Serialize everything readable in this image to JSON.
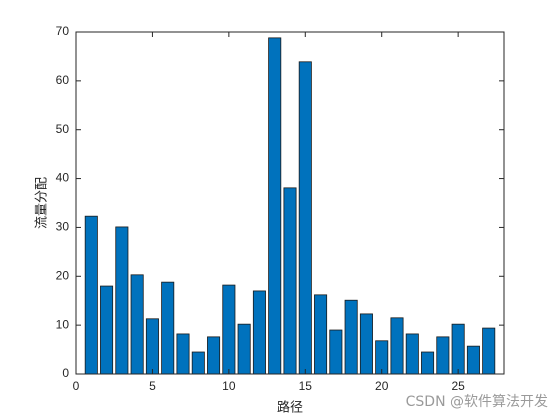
{
  "chart_data": {
    "type": "bar",
    "x": [
      1,
      2,
      3,
      4,
      5,
      6,
      7,
      8,
      9,
      10,
      11,
      12,
      13,
      14,
      15,
      16,
      17,
      18,
      19,
      20,
      21,
      22,
      23,
      24,
      25,
      26,
      27
    ],
    "values": [
      32.3,
      18,
      30.1,
      20.3,
      11.3,
      18.8,
      8.2,
      4.5,
      7.6,
      18.2,
      10.2,
      17,
      68.8,
      38.1,
      63.9,
      16.2,
      9,
      15.1,
      12.3,
      6.8,
      11.5,
      8.2,
      4.5,
      7.6,
      10.2,
      5.7,
      9.4
    ],
    "color": "#0072bd",
    "x_label": "路径",
    "y_label": "流量分配",
    "xlim": [
      0,
      28
    ],
    "xticks": [
      0,
      5,
      10,
      15,
      20,
      25
    ],
    "ylim": [
      0,
      70
    ],
    "yticks": [
      0,
      10,
      20,
      30,
      40,
      50,
      60,
      70
    ],
    "watermark": "CSDN @软件算法开发"
  }
}
